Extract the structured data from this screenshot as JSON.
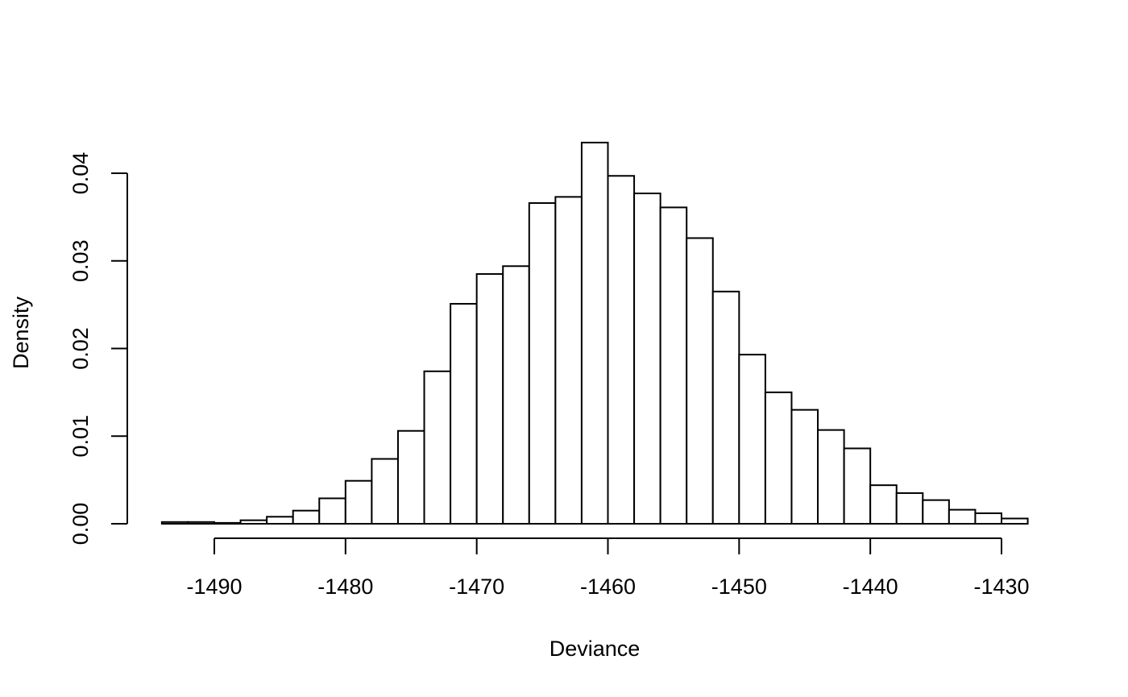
{
  "chart_data": {
    "type": "bar",
    "subtype": "histogram",
    "title": "",
    "xlabel": "Deviance",
    "ylabel": "Density",
    "bin_width": 2,
    "bin_edges": [
      -1494,
      -1492,
      -1490,
      -1488,
      -1486,
      -1484,
      -1482,
      -1480,
      -1478,
      -1476,
      -1474,
      -1472,
      -1470,
      -1468,
      -1466,
      -1464,
      -1462,
      -1460,
      -1458,
      -1456,
      -1454,
      -1452,
      -1450,
      -1448,
      -1446,
      -1444,
      -1442,
      -1440,
      -1438,
      -1436,
      -1434,
      -1432,
      -1430,
      -1428
    ],
    "values": [
      0.0002,
      0.0002,
      0.0001,
      0.0004,
      0.0008,
      0.0015,
      0.0029,
      0.0049,
      0.0074,
      0.0106,
      0.0174,
      0.0251,
      0.0285,
      0.0294,
      0.0366,
      0.0373,
      0.0435,
      0.0397,
      0.0377,
      0.0361,
      0.0326,
      0.0265,
      0.0193,
      0.015,
      0.013,
      0.0107,
      0.0086,
      0.0044,
      0.0035,
      0.0027,
      0.0016,
      0.0012,
      0.0006
    ],
    "xlim": [
      -1494,
      -1428
    ],
    "ylim": [
      0,
      0.0435
    ],
    "x_ticks": [
      -1490,
      -1480,
      -1470,
      -1460,
      -1450,
      -1440,
      -1430
    ],
    "x_tick_labels": [
      "-1490",
      "-1480",
      "-1470",
      "-1460",
      "-1450",
      "-1440",
      "-1430"
    ],
    "y_ticks": [
      0,
      0.01,
      0.02,
      0.03,
      0.04
    ],
    "y_tick_labels": [
      "0.00",
      "0.01",
      "0.02",
      "0.03",
      "0.04"
    ],
    "grid": false,
    "bar_fill": "#ffffff",
    "bar_stroke": "#000000"
  }
}
